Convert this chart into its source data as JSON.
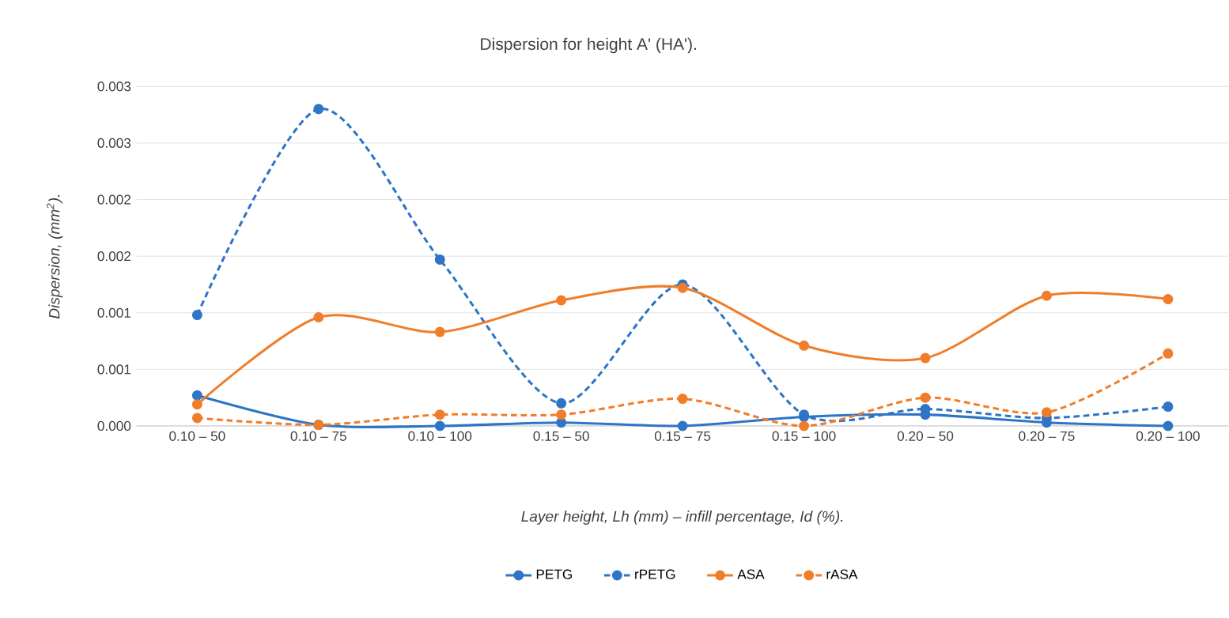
{
  "chart_data": {
    "type": "line",
    "title": "Dispersion for height A' (HA').",
    "xlabel": "Layer height, Lh (mm) – infill percentage, Id (%).",
    "ylabel": "Dispersion, (mm$^{2}$).",
    "categories": [
      "0.10 – 50",
      "0.10 – 75",
      "0.10 – 100",
      "0.15 – 50",
      "0.15 – 75",
      "0.15 – 100",
      "0.20 – 50",
      "0.20 – 75",
      "0.20 – 100"
    ],
    "series": [
      {
        "name": "PETG",
        "color": "#2e75c6",
        "line_style": "solid",
        "values": [
          0.00027,
          1e-05,
          0.0,
          3e-05,
          0.0,
          8e-05,
          0.0001,
          3e-05,
          0.0
        ]
      },
      {
        "name": "rPETG",
        "color": "#2e75c6",
        "line_style": "dashed",
        "values": [
          0.00098,
          0.0028,
          0.00147,
          0.0002,
          0.00125,
          0.0001,
          0.00015,
          7e-05,
          0.00017
        ]
      },
      {
        "name": "ASA",
        "color": "#f07d2a",
        "line_style": "solid",
        "values": [
          0.00019,
          0.00096,
          0.00083,
          0.00111,
          0.00122,
          0.00071,
          0.0006,
          0.00115,
          0.00112
        ]
      },
      {
        "name": "rASA",
        "color": "#f07d2a",
        "line_style": "dashed",
        "values": [
          7e-05,
          1e-05,
          0.0001,
          0.0001,
          0.00024,
          0.0,
          0.00025,
          0.00012,
          0.00064
        ]
      }
    ],
    "ylim": [
      0,
      0.003
    ],
    "yticks": [
      {
        "value": 0,
        "label": "0.000"
      },
      {
        "value": 0.0005,
        "label": "0.001"
      },
      {
        "value": 0.001,
        "label": "0.001"
      },
      {
        "value": 0.0015,
        "label": "0.002"
      },
      {
        "value": 0.002,
        "label": "0.002"
      },
      {
        "value": 0.0025,
        "label": "0.003"
      },
      {
        "value": 0.003,
        "label": "0.003"
      }
    ],
    "grid": "y",
    "legend": "bottom",
    "marker": "circle"
  }
}
